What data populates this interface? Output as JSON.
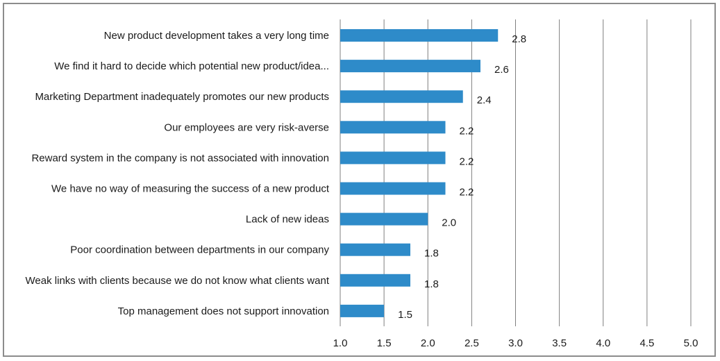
{
  "chart_data": {
    "type": "bar",
    "orientation": "horizontal",
    "categories": [
      "New product development takes a very long time",
      "We find it hard to decide which potential new product/idea...",
      "Marketing Department inadequately promotes our new products",
      "Our employees are very risk-averse",
      "Reward system in the company is not associated with innovation",
      "We have no way of measuring the success of a new product",
      "Lack of new ideas",
      "Poor coordination between departments in our company",
      "Weak links with clients because we do not know what clients want",
      "Top management does not support innovation"
    ],
    "values": [
      2.8,
      2.6,
      2.4,
      2.2,
      2.2,
      2.2,
      2.0,
      1.8,
      1.8,
      1.5
    ],
    "value_labels": [
      "2.8",
      "2.6",
      "2.4",
      "2.2",
      "2.2",
      "2.2",
      "2.0",
      "1.8",
      "1.8",
      "1.5"
    ],
    "xlim": [
      1.0,
      5.0
    ],
    "xticks": [
      1.0,
      1.5,
      2.0,
      2.5,
      3.0,
      3.5,
      4.0,
      4.5,
      5.0
    ],
    "xtick_labels": [
      "1.0",
      "1.5",
      "2.0",
      "2.5",
      "3.0",
      "3.5",
      "4.0",
      "4.5",
      "5.0"
    ],
    "grid": "vertical",
    "legend": "none",
    "bar_color": "#2e8bc9",
    "grid_color": "#7f7f7f"
  }
}
